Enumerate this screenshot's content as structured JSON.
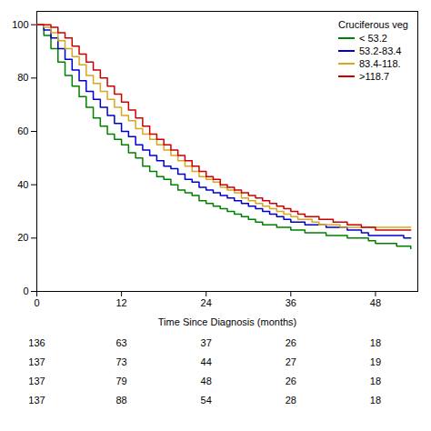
{
  "chart_data": {
    "type": "step",
    "title": "",
    "xlabel": "Time Since Diagnosis (months)",
    "ylabel": "",
    "legend": "upper right",
    "legend_title": "Cruciferous veg",
    "grid": false,
    "xlim": [
      0,
      54
    ],
    "ylim": [
      0,
      105
    ],
    "xticks": [
      0,
      12,
      24,
      36,
      48
    ],
    "yticks": [
      0,
      20,
      40,
      60,
      80,
      100
    ],
    "x": [
      0,
      1,
      2,
      3,
      4,
      5,
      6,
      7,
      8,
      9,
      10,
      11,
      12,
      13,
      14,
      15,
      16,
      17,
      18,
      19,
      20,
      21,
      22,
      23,
      24,
      25,
      26,
      27,
      28,
      29,
      30,
      31,
      32,
      33,
      34,
      35,
      36,
      37,
      38,
      39,
      40,
      41,
      42,
      43,
      44,
      45,
      46,
      47,
      48,
      49,
      50,
      51,
      52,
      53
    ],
    "series": [
      {
        "name": "< 53.2",
        "color": "#008000",
        "values": [
          100,
          96,
          91,
          86,
          81,
          77,
          73,
          69,
          65,
          62,
          59,
          57,
          55,
          52,
          50,
          47,
          45,
          43,
          42,
          40,
          38,
          37,
          36,
          34,
          33,
          32,
          31,
          30,
          29,
          28,
          27,
          26,
          25,
          25,
          24,
          24,
          23,
          23,
          22,
          22,
          22,
          21,
          21,
          21,
          20,
          20,
          20,
          19,
          18,
          18,
          18,
          17,
          17,
          16
        ]
      },
      {
        "name": "53.2-83.4",
        "color": "#0000CD",
        "values": [
          100,
          98,
          95,
          91,
          87,
          83,
          79,
          75,
          72,
          69,
          66,
          63,
          60,
          58,
          55,
          53,
          51,
          49,
          47,
          46,
          44,
          42,
          41,
          39,
          38,
          37,
          36,
          35,
          34,
          33,
          32,
          31,
          30,
          29,
          28,
          27,
          26,
          26,
          25,
          25,
          25,
          24,
          24,
          24,
          23,
          23,
          22,
          21,
          21,
          21,
          21,
          21,
          20,
          20
        ]
      },
      {
        "name": "83.4-118.",
        "color": "#DAA520",
        "values": [
          100,
          99,
          97,
          94,
          91,
          88,
          85,
          81,
          78,
          75,
          72,
          69,
          66,
          64,
          61,
          59,
          57,
          55,
          53,
          51,
          49,
          47,
          45,
          43,
          42,
          41,
          39,
          38,
          37,
          35,
          34,
          33,
          32,
          31,
          30,
          29,
          28,
          27,
          27,
          26,
          25,
          25,
          25,
          24,
          24,
          24,
          24,
          24,
          24,
          24,
          24,
          24,
          24,
          24
        ]
      },
      {
        "name": ">118.7",
        "color": "#CC0000",
        "values": [
          100,
          100,
          99,
          97,
          95,
          92,
          89,
          86,
          83,
          80,
          77,
          74,
          71,
          68,
          65,
          62,
          59,
          57,
          55,
          53,
          51,
          49,
          47,
          45,
          43,
          42,
          40,
          39,
          38,
          37,
          36,
          35,
          34,
          33,
          32,
          31,
          30,
          29,
          28,
          28,
          27,
          27,
          26,
          26,
          25,
          25,
          24,
          24,
          23,
          23,
          23,
          23,
          23,
          23
        ]
      }
    ],
    "at_risk_times": [
      0,
      12,
      24,
      36,
      48
    ],
    "at_risk_table": [
      [
        136,
        63,
        37,
        26,
        18
      ],
      [
        137,
        73,
        44,
        27,
        19
      ],
      [
        137,
        79,
        48,
        26,
        18
      ],
      [
        137,
        88,
        54,
        28,
        18
      ]
    ]
  }
}
